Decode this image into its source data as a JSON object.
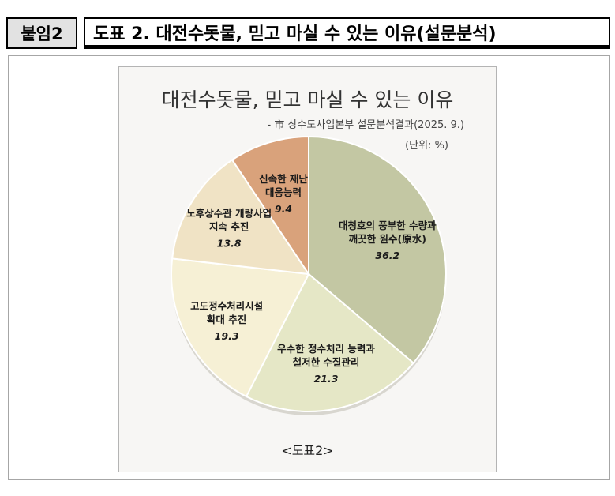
{
  "header": {
    "badge": "붙임2",
    "title": "도표 2. 대전수돗물, 믿고 마실 수 있는 이유(설문분석)"
  },
  "chart_data": {
    "type": "pie",
    "title": "대전수돗물, 믿고 마실 수 있는 이유",
    "subtitle": "- 市 상수도사업본부 설문분석결과(2025. 9.)",
    "unit": "(단위: %)",
    "caption": "<도표2>",
    "slices": [
      {
        "label": [
          "대청호의 풍부한 수량과",
          "깨끗한 원수(原水)"
        ],
        "value": 36.2,
        "color": "#c3c7a3"
      },
      {
        "label": [
          "우수한 정수처리 능력과",
          "철저한 수질관리"
        ],
        "value": 21.3,
        "color": "#e5e7c6"
      },
      {
        "label": [
          "고도정수처리시설",
          "확대 추진"
        ],
        "value": 19.3,
        "color": "#f6f0d5"
      },
      {
        "label": [
          "노후상수관 개량사업",
          "지속 추진"
        ],
        "value": 13.8,
        "color": "#f0e3c5"
      },
      {
        "label": [
          "신속한 재난",
          "대응능력"
        ],
        "value": 9.4,
        "color": "#d9a27b"
      }
    ]
  }
}
